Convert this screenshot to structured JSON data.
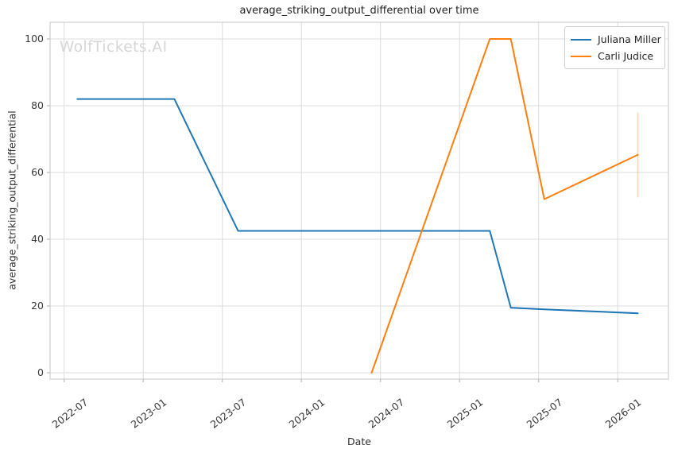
{
  "figure": {
    "watermark": "WolfTickets.AI"
  },
  "colors": {
    "grid": "#dcdcdc",
    "spine": "#c6c6c6",
    "tick_mark": "#aeaeae",
    "series_blue": "#1f77b4",
    "series_orange": "#ff7f0e"
  },
  "chart_data": {
    "type": "line",
    "title": "average_striking_output_differential over time",
    "xlabel": "Date",
    "ylabel": "average_striking_output_differential",
    "grid": true,
    "legend_position": "upper right",
    "ylim": [
      -2,
      105
    ],
    "y_ticks": [
      0,
      20,
      40,
      60,
      80,
      100
    ],
    "x_tick_labels": [
      "2022-07",
      "2023-01",
      "2023-07",
      "2024-01",
      "2024-07",
      "2025-01",
      "2025-07",
      "2026-01"
    ],
    "series": [
      {
        "name": "Juliana Miller",
        "color": "#1f77b4",
        "points": [
          [
            "2022-08-01",
            82
          ],
          [
            "2023-03-12",
            82
          ],
          [
            "2023-08-07",
            42.5
          ],
          [
            "2025-03-10",
            42.5
          ],
          [
            "2025-04-28",
            19.5
          ],
          [
            "2025-07-14",
            19
          ],
          [
            "2026-02-17",
            17.8
          ]
        ]
      },
      {
        "name": "Carli Judice",
        "color": "#ff7f0e",
        "points": [
          [
            "2024-06-11",
            0
          ],
          [
            "2025-03-10",
            100
          ],
          [
            "2025-04-28",
            100
          ],
          [
            "2025-07-14",
            52
          ],
          [
            "2026-02-17",
            65.3
          ]
        ]
      }
    ],
    "annotations": {
      "orange_error_bar": {
        "x": "2026-02-17",
        "y_low": 52.5,
        "y_high": 78,
        "color": "#ff7f0e",
        "opacity": 0.3
      },
      "blue_faint_segment": {
        "color": "#1f77b4",
        "opacity": 0.3,
        "points": [
          [
            "2025-04-28",
            19.4
          ],
          [
            "2026-02-17",
            17.9
          ]
        ]
      }
    }
  }
}
